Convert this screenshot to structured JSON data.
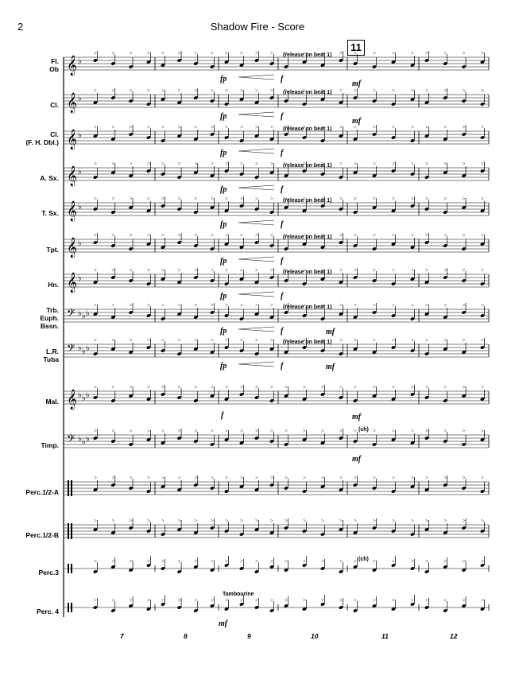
{
  "page": {
    "number": "2",
    "title": "Shadow Fire - Score",
    "rehearsal_mark": "11"
  },
  "instruments": [
    {
      "label": "Fl.\nOb",
      "clef": "treble",
      "flats": 1
    },
    {
      "label": "Cl.",
      "clef": "treble",
      "flats": 1
    },
    {
      "label": "Cl.\n(F. H. Dbl.)",
      "clef": "treble",
      "flats": 1
    },
    {
      "label": "A. Sx.",
      "clef": "treble",
      "flats": 1
    },
    {
      "label": "T. Sx.",
      "clef": "treble",
      "flats": 1
    },
    {
      "label": "Tpt.",
      "clef": "treble",
      "flats": 1
    },
    {
      "label": "Hn.",
      "clef": "treble",
      "flats": 1
    },
    {
      "label": "Trb.\nEuph.\nBssn.",
      "clef": "bass",
      "flats": 3
    },
    {
      "label": "L.R.\nTuba",
      "clef": "bass",
      "flats": 3
    },
    {
      "label": "Mal.",
      "clef": "treble",
      "flats": 3
    },
    {
      "label": "Timp.",
      "clef": "bass",
      "flats": 3
    },
    {
      "label": "Perc.1/2-A",
      "clef": "perc",
      "flats": 0
    },
    {
      "label": "Perc.1/2-B",
      "clef": "perc",
      "flats": 0
    },
    {
      "label": "Perc.3",
      "clef": "perc",
      "flats": 0
    },
    {
      "label": "Perc. 4",
      "clef": "perc",
      "flats": 0
    }
  ],
  "annotations": {
    "release": "(release on beat 1)",
    "fp": "fp",
    "f": "f",
    "mf": "mf",
    "ch": "(ch)",
    "tambourine": "Tambourine"
  },
  "measure_numbers": [
    "7",
    "8",
    "9",
    "10",
    "11",
    "12"
  ]
}
